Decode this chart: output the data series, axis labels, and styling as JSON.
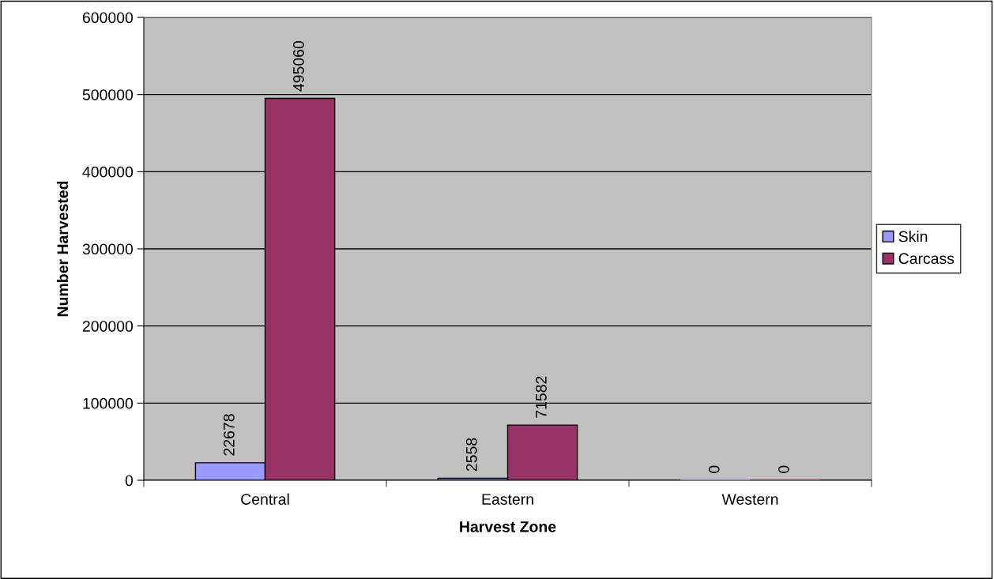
{
  "chart_data": {
    "type": "bar",
    "xlabel": "Harvest Zone",
    "ylabel": "Number Harvested",
    "categories": [
      "Central",
      "Eastern",
      "Western"
    ],
    "series": [
      {
        "name": "Skin",
        "color": "#9999ff",
        "values": [
          22678,
          2558,
          0
        ]
      },
      {
        "name": "Carcass",
        "color": "#993366",
        "values": [
          495060,
          71582,
          0
        ]
      }
    ],
    "ylim": [
      0,
      600000
    ],
    "yticks": [
      0,
      100000,
      200000,
      300000,
      400000,
      500000,
      600000
    ],
    "grid": "y",
    "legend": "right",
    "data_labels": true
  }
}
